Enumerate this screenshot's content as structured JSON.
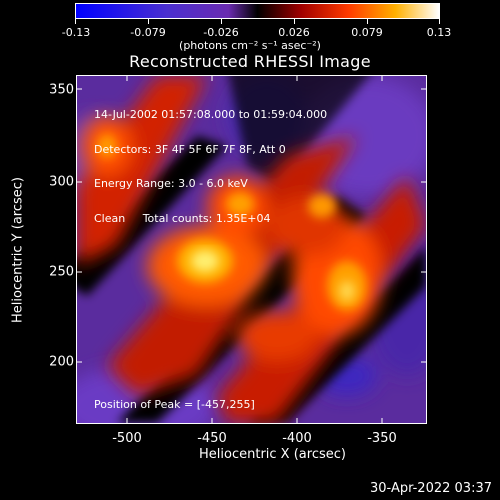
{
  "colorbar": {
    "ticks": [
      "-0.13",
      "-0.079",
      "-0.026",
      "0.026",
      "0.079",
      "0.13"
    ],
    "units": "(photons cm⁻² s⁻¹ asec⁻²)"
  },
  "title": "Reconstructed RHESSI Image",
  "info": {
    "time": "14-Jul-2002 01:57:08.000 to 01:59:04.000",
    "detectors": "Detectors: 3F 4F 5F 6F 7F 8F, Att 0",
    "energy": "Energy Range: 3.0 - 6.0 keV",
    "clean": "Clean     Total counts: 1.35E+04"
  },
  "peak": "Position of Peak = [-457,255]",
  "axes": {
    "xlabel": "Heliocentric X (arcsec)",
    "ylabel": "Heliocentric Y (arcsec)",
    "xticks": [
      "-500",
      "-450",
      "-400",
      "-350"
    ],
    "yticks": [
      "350",
      "300",
      "250",
      "200"
    ]
  },
  "footer_date": "30-Apr-2022 03:37",
  "colors": {
    "background": "#000000",
    "foreground": "#ffffff"
  }
}
